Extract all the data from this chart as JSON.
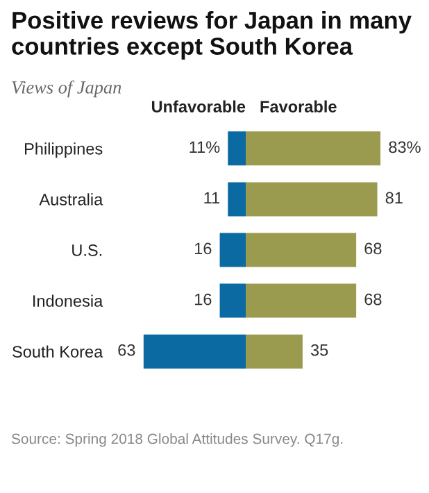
{
  "chart_data": [
    {
      "type": "bar",
      "orientation": "horizontal",
      "title": "Positive reviews for Japan in many countries except South Korea",
      "subtitle": "Views of Japan",
      "xlabel": "Unfavorable",
      "categories": [
        "Philippines",
        "Australia",
        "U.S.",
        "Indonesia",
        "South Korea"
      ],
      "series": [
        {
          "color": "#0b6aa2",
          "values": [
            11,
            11,
            16,
            16,
            63
          ],
          "value_labels": [
            "11%",
            "11",
            "16",
            "16",
            "63"
          ]
        }
      ],
      "xlim": [
        63,
        0
      ],
      "tick_labels": "y",
      "legend": false,
      "annotations": [
        "Source: Spring 2018 Global Attitudes Survey. Q17g."
      ]
    },
    {
      "type": "bar",
      "orientation": "horizontal",
      "xlabel": "Favorable",
      "categories": [
        null,
        null,
        null,
        null,
        null
      ],
      "series": [
        {
          "color": "#9a9b4f",
          "values": [
            83,
            81,
            68,
            68,
            35
          ],
          "value_labels": [
            "83%",
            "81",
            "68",
            "68",
            "35"
          ]
        }
      ],
      "xlim": [
        0,
        83
      ],
      "tick_labels": false,
      "legend": false
    }
  ]
}
